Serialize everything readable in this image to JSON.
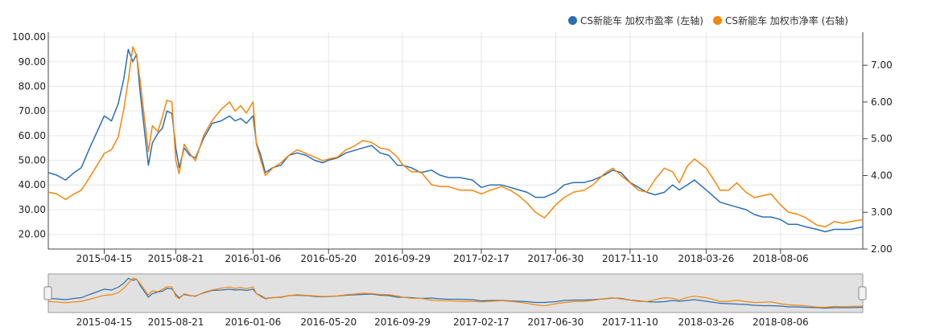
{
  "colors": {
    "series1": "#2b6fb3",
    "series2": "#f5870c",
    "grid": "#e6e6e6",
    "axis": "#444444",
    "navigator_bg": "#e1e1e1"
  },
  "legend": {
    "series1_label": "CS新能车 加权市盈率 (左轴)",
    "series2_label": "CS新能车 加权市净率 (右轴)"
  },
  "chart_data": {
    "type": "line",
    "x_tick_labels": [
      "2015-04-15",
      "2015-08-21",
      "2016-01-06",
      "2016-05-20",
      "2016-09-29",
      "2017-02-17",
      "2017-06-30",
      "2017-11-10",
      "2018-03-26",
      "2018-08-06"
    ],
    "x_range": [
      "2015-01-05",
      "2018-12-31"
    ],
    "y_left_ticks": [
      "20.00",
      "30.00",
      "40.00",
      "50.00",
      "60.00",
      "70.00",
      "80.00",
      "90.00",
      "100.00"
    ],
    "y_left_range": [
      14,
      102
    ],
    "y_right_ticks": [
      "2.00",
      "3.00",
      "4.00",
      "5.00",
      "6.00",
      "7.00"
    ],
    "y_right_range": [
      2.0,
      7.9
    ],
    "grid": true,
    "legend_position": "top-right",
    "navigator": true,
    "series": [
      {
        "name": "CS新能车 加权市盈率 (左轴)",
        "axis": "left",
        "color": "#2b6fb3",
        "points": [
          [
            "2015-01-05",
            45
          ],
          [
            "2015-01-20",
            44
          ],
          [
            "2015-02-05",
            42
          ],
          [
            "2015-02-20",
            45
          ],
          [
            "2015-03-05",
            47
          ],
          [
            "2015-03-20",
            55
          ],
          [
            "2015-04-01",
            61
          ],
          [
            "2015-04-15",
            68
          ],
          [
            "2015-04-28",
            66
          ],
          [
            "2015-05-10",
            73
          ],
          [
            "2015-05-20",
            83
          ],
          [
            "2015-05-28",
            95
          ],
          [
            "2015-06-05",
            90
          ],
          [
            "2015-06-12",
            93
          ],
          [
            "2015-06-18",
            78
          ],
          [
            "2015-06-26",
            62
          ],
          [
            "2015-07-03",
            48
          ],
          [
            "2015-07-10",
            57
          ],
          [
            "2015-07-20",
            61
          ],
          [
            "2015-07-28",
            63
          ],
          [
            "2015-08-05",
            70
          ],
          [
            "2015-08-14",
            69
          ],
          [
            "2015-08-21",
            55
          ],
          [
            "2015-08-27",
            47
          ],
          [
            "2015-09-05",
            55
          ],
          [
            "2015-09-15",
            52
          ],
          [
            "2015-09-25",
            51
          ],
          [
            "2015-10-10",
            59
          ],
          [
            "2015-10-25",
            65
          ],
          [
            "2015-11-10",
            66
          ],
          [
            "2015-11-25",
            68
          ],
          [
            "2015-12-05",
            66
          ],
          [
            "2015-12-15",
            67
          ],
          [
            "2015-12-25",
            65
          ],
          [
            "2016-01-06",
            68
          ],
          [
            "2016-01-12",
            57
          ],
          [
            "2016-01-20",
            52
          ],
          [
            "2016-01-28",
            45
          ],
          [
            "2016-02-10",
            47
          ],
          [
            "2016-02-25",
            48
          ],
          [
            "2016-03-10",
            52
          ],
          [
            "2016-03-25",
            53
          ],
          [
            "2016-04-10",
            52
          ],
          [
            "2016-04-25",
            50
          ],
          [
            "2016-05-10",
            49
          ],
          [
            "2016-05-20",
            50
          ],
          [
            "2016-06-05",
            51
          ],
          [
            "2016-06-20",
            53
          ],
          [
            "2016-07-05",
            54
          ],
          [
            "2016-07-20",
            55
          ],
          [
            "2016-08-05",
            56
          ],
          [
            "2016-08-20",
            53
          ],
          [
            "2016-09-05",
            52
          ],
          [
            "2016-09-20",
            48
          ],
          [
            "2016-09-29",
            48
          ],
          [
            "2016-10-15",
            47
          ],
          [
            "2016-11-01",
            45
          ],
          [
            "2016-11-20",
            46
          ],
          [
            "2016-12-05",
            44
          ],
          [
            "2016-12-20",
            43
          ],
          [
            "2017-01-10",
            43
          ],
          [
            "2017-02-01",
            42
          ],
          [
            "2017-02-17",
            39
          ],
          [
            "2017-03-05",
            40
          ],
          [
            "2017-03-25",
            40
          ],
          [
            "2017-04-10",
            39
          ],
          [
            "2017-04-25",
            38
          ],
          [
            "2017-05-10",
            37
          ],
          [
            "2017-05-25",
            35
          ],
          [
            "2017-06-10",
            35
          ],
          [
            "2017-06-30",
            37
          ],
          [
            "2017-07-15",
            40
          ],
          [
            "2017-08-01",
            41
          ],
          [
            "2017-08-20",
            41
          ],
          [
            "2017-09-05",
            42
          ],
          [
            "2017-09-25",
            44
          ],
          [
            "2017-10-10",
            46
          ],
          [
            "2017-10-25",
            45
          ],
          [
            "2017-11-10",
            41
          ],
          [
            "2017-11-25",
            39
          ],
          [
            "2017-12-10",
            37
          ],
          [
            "2017-12-25",
            36
          ],
          [
            "2018-01-10",
            37
          ],
          [
            "2018-01-25",
            40
          ],
          [
            "2018-02-06",
            38
          ],
          [
            "2018-02-20",
            40
          ],
          [
            "2018-03-05",
            42
          ],
          [
            "2018-03-26",
            38
          ],
          [
            "2018-04-10",
            35
          ],
          [
            "2018-04-20",
            33
          ],
          [
            "2018-05-05",
            32
          ],
          [
            "2018-05-20",
            31
          ],
          [
            "2018-06-05",
            30
          ],
          [
            "2018-06-20",
            28
          ],
          [
            "2018-07-05",
            27
          ],
          [
            "2018-07-20",
            27
          ],
          [
            "2018-08-06",
            26
          ],
          [
            "2018-08-20",
            24
          ],
          [
            "2018-09-05",
            24
          ],
          [
            "2018-09-20",
            23
          ],
          [
            "2018-10-10",
            22
          ],
          [
            "2018-10-25",
            21
          ],
          [
            "2018-11-10",
            22
          ],
          [
            "2018-11-25",
            22
          ],
          [
            "2018-12-10",
            22
          ],
          [
            "2018-12-31",
            23
          ]
        ]
      },
      {
        "name": "CS新能车 加权市净率 (右轴)",
        "axis": "right",
        "color": "#f5870c",
        "points": [
          [
            "2015-01-05",
            3.55
          ],
          [
            "2015-01-20",
            3.5
          ],
          [
            "2015-02-05",
            3.35
          ],
          [
            "2015-02-20",
            3.5
          ],
          [
            "2015-03-05",
            3.6
          ],
          [
            "2015-03-20",
            3.95
          ],
          [
            "2015-04-01",
            4.25
          ],
          [
            "2015-04-15",
            4.6
          ],
          [
            "2015-04-28",
            4.7
          ],
          [
            "2015-05-10",
            5.05
          ],
          [
            "2015-05-20",
            5.8
          ],
          [
            "2015-05-28",
            6.6
          ],
          [
            "2015-06-05",
            7.5
          ],
          [
            "2015-06-12",
            7.25
          ],
          [
            "2015-06-18",
            6.6
          ],
          [
            "2015-06-26",
            5.55
          ],
          [
            "2015-07-03",
            4.65
          ],
          [
            "2015-07-10",
            5.35
          ],
          [
            "2015-07-20",
            5.2
          ],
          [
            "2015-07-28",
            5.6
          ],
          [
            "2015-08-05",
            6.05
          ],
          [
            "2015-08-14",
            6.0
          ],
          [
            "2015-08-21",
            4.4
          ],
          [
            "2015-08-27",
            4.05
          ],
          [
            "2015-09-05",
            4.85
          ],
          [
            "2015-09-15",
            4.6
          ],
          [
            "2015-09-25",
            4.4
          ],
          [
            "2015-10-10",
            5.1
          ],
          [
            "2015-10-25",
            5.5
          ],
          [
            "2015-11-10",
            5.8
          ],
          [
            "2015-11-25",
            6.0
          ],
          [
            "2015-12-05",
            5.75
          ],
          [
            "2015-12-15",
            5.9
          ],
          [
            "2015-12-25",
            5.7
          ],
          [
            "2016-01-06",
            6.0
          ],
          [
            "2016-01-12",
            4.85
          ],
          [
            "2016-01-20",
            4.4
          ],
          [
            "2016-01-28",
            4.0
          ],
          [
            "2016-02-10",
            4.2
          ],
          [
            "2016-02-25",
            4.35
          ],
          [
            "2016-03-10",
            4.55
          ],
          [
            "2016-03-25",
            4.7
          ],
          [
            "2016-04-10",
            4.6
          ],
          [
            "2016-04-25",
            4.5
          ],
          [
            "2016-05-10",
            4.4
          ],
          [
            "2016-05-20",
            4.45
          ],
          [
            "2016-06-05",
            4.5
          ],
          [
            "2016-06-20",
            4.7
          ],
          [
            "2016-07-05",
            4.8
          ],
          [
            "2016-07-20",
            4.95
          ],
          [
            "2016-08-05",
            4.9
          ],
          [
            "2016-08-20",
            4.75
          ],
          [
            "2016-09-05",
            4.7
          ],
          [
            "2016-09-20",
            4.5
          ],
          [
            "2016-09-29",
            4.3
          ],
          [
            "2016-10-15",
            4.1
          ],
          [
            "2016-11-01",
            4.1
          ],
          [
            "2016-11-20",
            3.75
          ],
          [
            "2016-12-05",
            3.7
          ],
          [
            "2016-12-20",
            3.7
          ],
          [
            "2017-01-10",
            3.6
          ],
          [
            "2017-02-01",
            3.6
          ],
          [
            "2017-02-17",
            3.5
          ],
          [
            "2017-03-05",
            3.6
          ],
          [
            "2017-03-25",
            3.7
          ],
          [
            "2017-04-10",
            3.6
          ],
          [
            "2017-04-25",
            3.45
          ],
          [
            "2017-05-10",
            3.25
          ],
          [
            "2017-05-25",
            3.0
          ],
          [
            "2017-06-10",
            2.85
          ],
          [
            "2017-06-30",
            3.2
          ],
          [
            "2017-07-15",
            3.4
          ],
          [
            "2017-08-01",
            3.55
          ],
          [
            "2017-08-20",
            3.6
          ],
          [
            "2017-09-05",
            3.75
          ],
          [
            "2017-09-25",
            4.05
          ],
          [
            "2017-10-10",
            4.2
          ],
          [
            "2017-10-25",
            4.0
          ],
          [
            "2017-11-10",
            3.8
          ],
          [
            "2017-11-25",
            3.6
          ],
          [
            "2017-12-10",
            3.55
          ],
          [
            "2017-12-25",
            3.9
          ],
          [
            "2018-01-10",
            4.2
          ],
          [
            "2018-01-25",
            4.1
          ],
          [
            "2018-02-06",
            3.8
          ],
          [
            "2018-02-20",
            4.25
          ],
          [
            "2018-03-05",
            4.45
          ],
          [
            "2018-03-26",
            4.2
          ],
          [
            "2018-04-10",
            3.85
          ],
          [
            "2018-04-20",
            3.6
          ],
          [
            "2018-05-05",
            3.6
          ],
          [
            "2018-05-20",
            3.8
          ],
          [
            "2018-06-05",
            3.55
          ],
          [
            "2018-06-20",
            3.4
          ],
          [
            "2018-07-05",
            3.45
          ],
          [
            "2018-07-20",
            3.5
          ],
          [
            "2018-08-06",
            3.2
          ],
          [
            "2018-08-20",
            3.0
          ],
          [
            "2018-09-05",
            2.95
          ],
          [
            "2018-09-20",
            2.85
          ],
          [
            "2018-10-10",
            2.65
          ],
          [
            "2018-10-25",
            2.6
          ],
          [
            "2018-11-10",
            2.75
          ],
          [
            "2018-11-25",
            2.7
          ],
          [
            "2018-12-10",
            2.75
          ],
          [
            "2018-12-31",
            2.8
          ]
        ]
      }
    ]
  }
}
